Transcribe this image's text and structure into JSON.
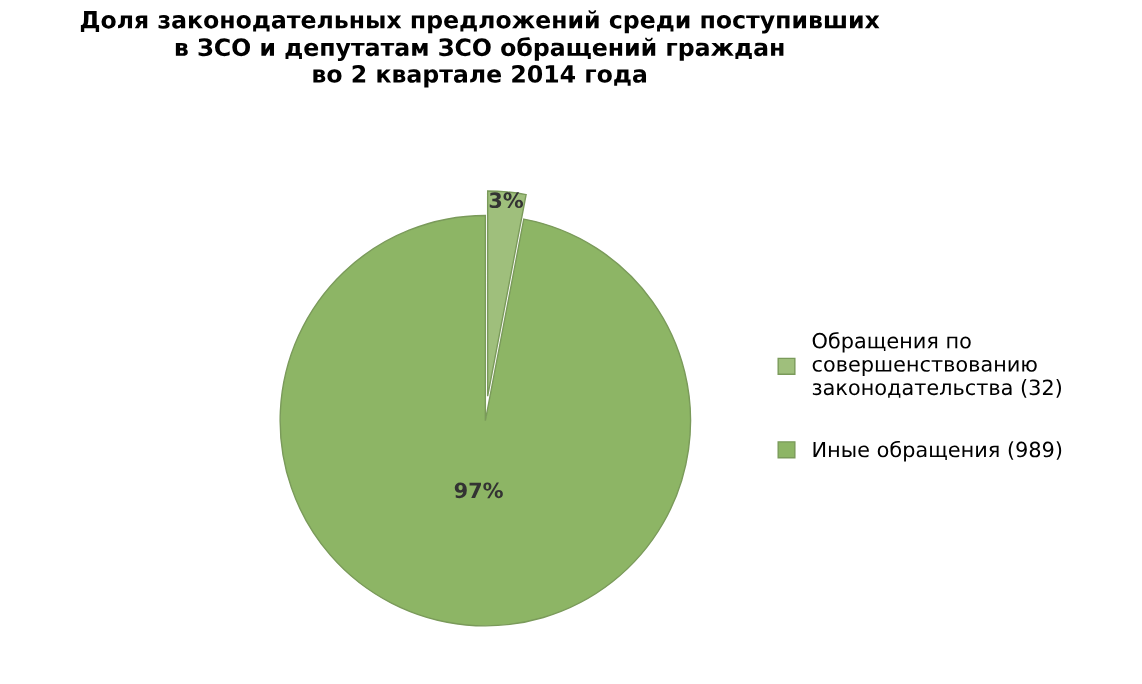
{
  "chart_data": {
    "type": "pie",
    "title": "Доля законодательных предложений среди поступивших\nв ЗСО и депутатам ЗСО обращений граждан\nво 2 квартале 2014 года",
    "categories": [
      "Обращения по\nсовершенствованию\nзаконодательства (32)",
      "Иные обращения (989)"
    ],
    "values": [
      3,
      97
    ],
    "value_labels": [
      "3%",
      "97%"
    ],
    "colors": [
      "#9fbf7c",
      "#8db565"
    ],
    "legend": "right"
  }
}
